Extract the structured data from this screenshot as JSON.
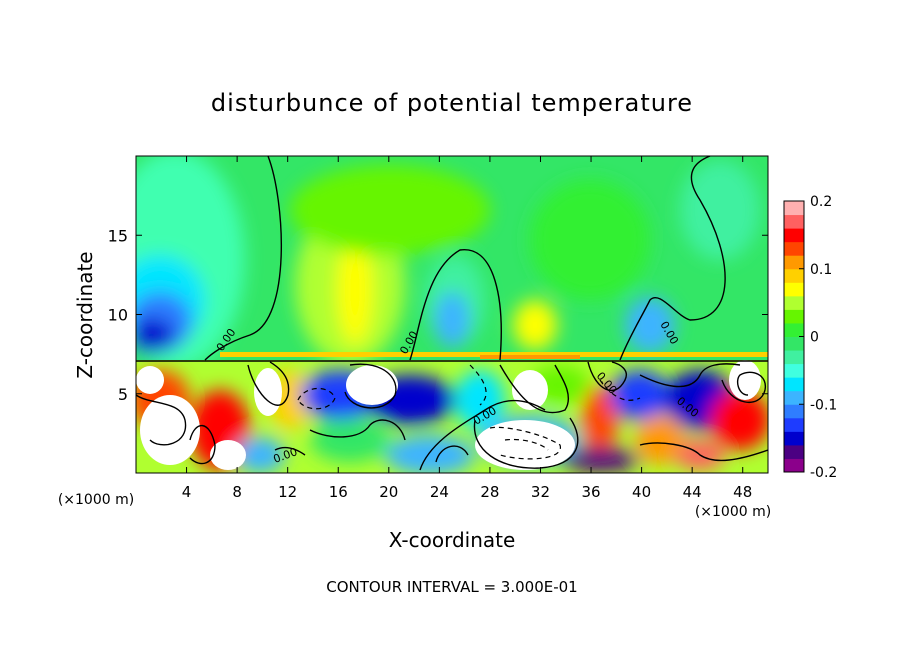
{
  "chart_data": {
    "type": "heatmap",
    "title": "disturbunce of potential temperature",
    "xlabel": "X-coordinate",
    "ylabel": "Z-coordinate",
    "x_unit_left": "(×1000 m)",
    "x_unit_right": "(×1000 m)",
    "xlim": [
      0,
      50
    ],
    "ylim": [
      0,
      20
    ],
    "x_ticks": [
      "4",
      "8",
      "12",
      "16",
      "20",
      "24",
      "28",
      "32",
      "36",
      "40",
      "44",
      "48"
    ],
    "x_tick_values": [
      4,
      8,
      12,
      16,
      20,
      24,
      28,
      32,
      36,
      40,
      44,
      48
    ],
    "y_ticks": [
      "5",
      "10",
      "15"
    ],
    "y_tick_values": [
      5,
      10,
      15
    ],
    "colorbar": {
      "min": -0.2,
      "max": 0.2,
      "tick_labels": [
        "0.2",
        "0.1",
        "0",
        "-0.1",
        "-0.2"
      ],
      "tick_values": [
        0.2,
        0.1,
        0,
        -0.1,
        -0.2
      ],
      "colors": [
        "#8b008b",
        "#4b0082",
        "#0000cd",
        "#1e3cff",
        "#2f7dff",
        "#3cb4ff",
        "#00e5ff",
        "#40ffe0",
        "#40f0a0",
        "#33e666",
        "#33f033",
        "#66f500",
        "#b0ff30",
        "#ffff00",
        "#ffd000",
        "#ff9900",
        "#ff4500",
        "#ff0000",
        "#ff6060",
        "#ffb0b0"
      ]
    },
    "contour_labels": [
      "0.00",
      "0.00",
      "0.00",
      "0.00",
      "0.00",
      "0.00",
      "0.00"
    ],
    "footer": "CONTOUR INTERVAL = 3.000E-01",
    "grid": false
  }
}
